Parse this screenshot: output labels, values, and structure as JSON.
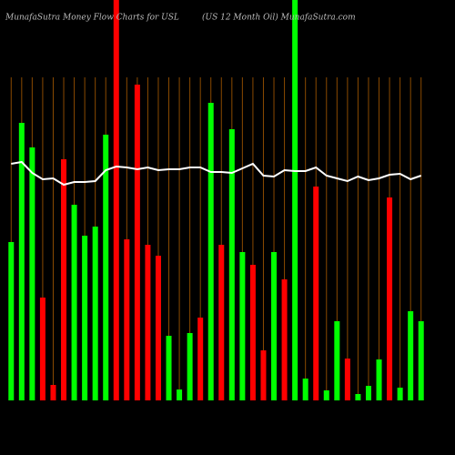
{
  "chart_data": {
    "type": "bar",
    "title": "MunafaSutra  Money Flow  Charts for USL",
    "subtitle": "(US 12  Month Oil) MunafaSutra.com",
    "categories": [
      null,
      null,
      null,
      null,
      null,
      null,
      null,
      null,
      null,
      null,
      null,
      null,
      null,
      null,
      null,
      null,
      null,
      null,
      null,
      null,
      null,
      null,
      null,
      null,
      null,
      null,
      null,
      null,
      null,
      null,
      null,
      null,
      null,
      null,
      null,
      null,
      null,
      null,
      null,
      null
    ],
    "values": [
      174,
      305,
      278,
      113,
      17,
      265,
      215,
      181,
      191,
      292,
      440,
      177,
      347,
      171,
      159,
      71,
      12,
      74,
      91,
      327,
      171,
      298,
      163,
      149,
      55,
      163,
      133,
      440,
      24,
      235,
      11,
      87,
      46,
      7,
      16,
      45,
      223,
      14,
      98,
      87
    ],
    "colors": [
      "#00ff00",
      "#00ff00",
      "#00ff00",
      "#ff0000",
      "#ff0000",
      "#ff0000",
      "#00ff00",
      "#00ff00",
      "#00ff00",
      "#00ff00",
      "#ff0000",
      "#ff0000",
      "#ff0000",
      "#ff0000",
      "#ff0000",
      "#00ff00",
      "#00ff00",
      "#00ff00",
      "#ff0000",
      "#00ff00",
      "#ff0000",
      "#00ff00",
      "#00ff00",
      "#ff0000",
      "#ff0000",
      "#00ff00",
      "#ff0000",
      "#00ff00",
      "#00ff00",
      "#ff0000",
      "#00ff00",
      "#00ff00",
      "#ff0000",
      "#00ff00",
      "#00ff00",
      "#00ff00",
      "#ff0000",
      "#00ff00",
      "#00ff00",
      "#00ff00"
    ],
    "line": {
      "color": "#ffffff",
      "values": [
        260,
        262,
        250,
        243,
        244,
        237,
        240,
        240,
        241,
        253,
        257,
        256,
        254,
        256,
        253,
        254,
        254,
        256,
        256,
        251,
        251,
        250,
        255,
        260,
        247,
        246,
        253,
        252,
        252,
        256,
        247,
        244,
        241,
        246,
        242,
        244,
        248,
        249,
        243,
        247
      ]
    },
    "ylim": [
      0,
      440
    ],
    "grid": true,
    "grid_color": "#8a4a00"
  }
}
